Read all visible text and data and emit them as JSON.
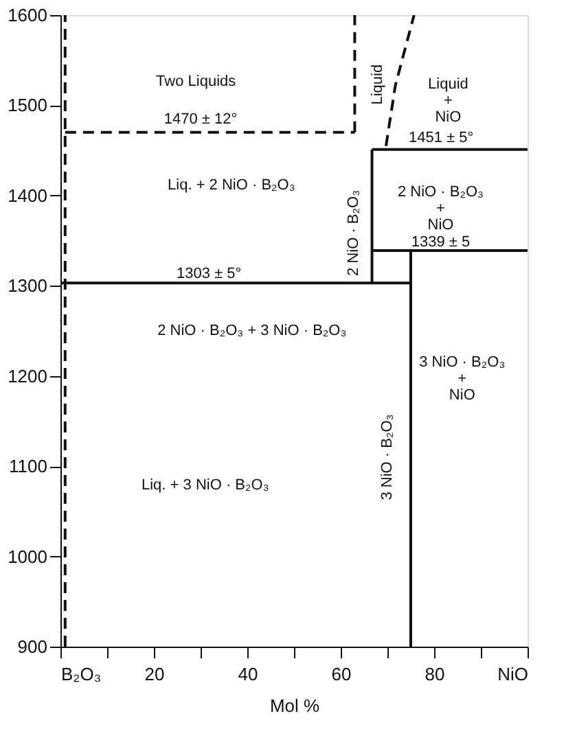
{
  "chart_data": {
    "type": "line",
    "xlabel": "Mol %",
    "xlim": [
      0,
      100
    ],
    "ylim": [
      900,
      1600
    ],
    "xticks": [
      {
        "value": 0,
        "label": "B₂O₃"
      },
      {
        "value": 10,
        "label": null
      },
      20,
      {
        "value": 30,
        "label": null
      },
      40,
      {
        "value": 50,
        "label": null
      },
      60,
      {
        "value": 70,
        "label": null
      },
      80,
      {
        "value": 90,
        "label": null
      },
      {
        "value": 100,
        "label": "NiO"
      }
    ],
    "yticks": [
      900,
      1000,
      1100,
      1200,
      1300,
      1400,
      1500,
      1600
    ],
    "grid": false,
    "series": [
      {
        "color": "#111111",
        "line_style": "dashed",
        "x": [
          1,
          1
        ],
        "values": [
          900,
          1600
        ]
      },
      {
        "color": "#111111",
        "line_style": "dashed",
        "x": [
          1,
          63
        ],
        "values": [
          1470,
          1470
        ]
      },
      {
        "color": "#111111",
        "line_style": "dashed",
        "x": [
          63,
          63
        ],
        "values": [
          1470,
          1600
        ]
      },
      {
        "color": "#111111",
        "line_style": "dashed",
        "x": [
          69.7,
          71.7,
          75.7
        ],
        "values": [
          1455,
          1522,
          1600
        ]
      },
      {
        "color": "#111111",
        "line_style": "solid",
        "x": [
          0,
          75
        ],
        "values": [
          1303,
          1303
        ]
      },
      {
        "color": "#111111",
        "line_style": "solid",
        "x": [
          66.7,
          66.7
        ],
        "values": [
          1303,
          1451
        ]
      },
      {
        "color": "#111111",
        "line_style": "solid",
        "x": [
          66.7,
          100
        ],
        "values": [
          1451,
          1451
        ]
      },
      {
        "color": "#111111",
        "line_style": "solid",
        "x": [
          66.7,
          100
        ],
        "values": [
          1339,
          1339
        ]
      },
      {
        "color": "#111111",
        "line_style": "solid",
        "x": [
          75,
          75
        ],
        "values": [
          900,
          1339
        ]
      }
    ],
    "annotations": [
      "Two Liquids",
      "1470 ± 12°",
      "Liquid",
      "Liquid\n+\nNiO",
      "1451 ± 5°",
      "Liq. + 2 NiO · B₂O₃",
      "2 NiO · B₂O₃",
      "2 NiO · B₂O₃\n+\nNiO",
      "1339 ± 5",
      "1303 ± 5°",
      "2 NiO · B₂O₃ + 3 NiO · B₂O₃",
      "3 NiO · B₂O₃\n+\nNiO",
      "3 NiO · B₂O₃",
      "Liq. + 3 NiO · B₂O₃"
    ]
  }
}
